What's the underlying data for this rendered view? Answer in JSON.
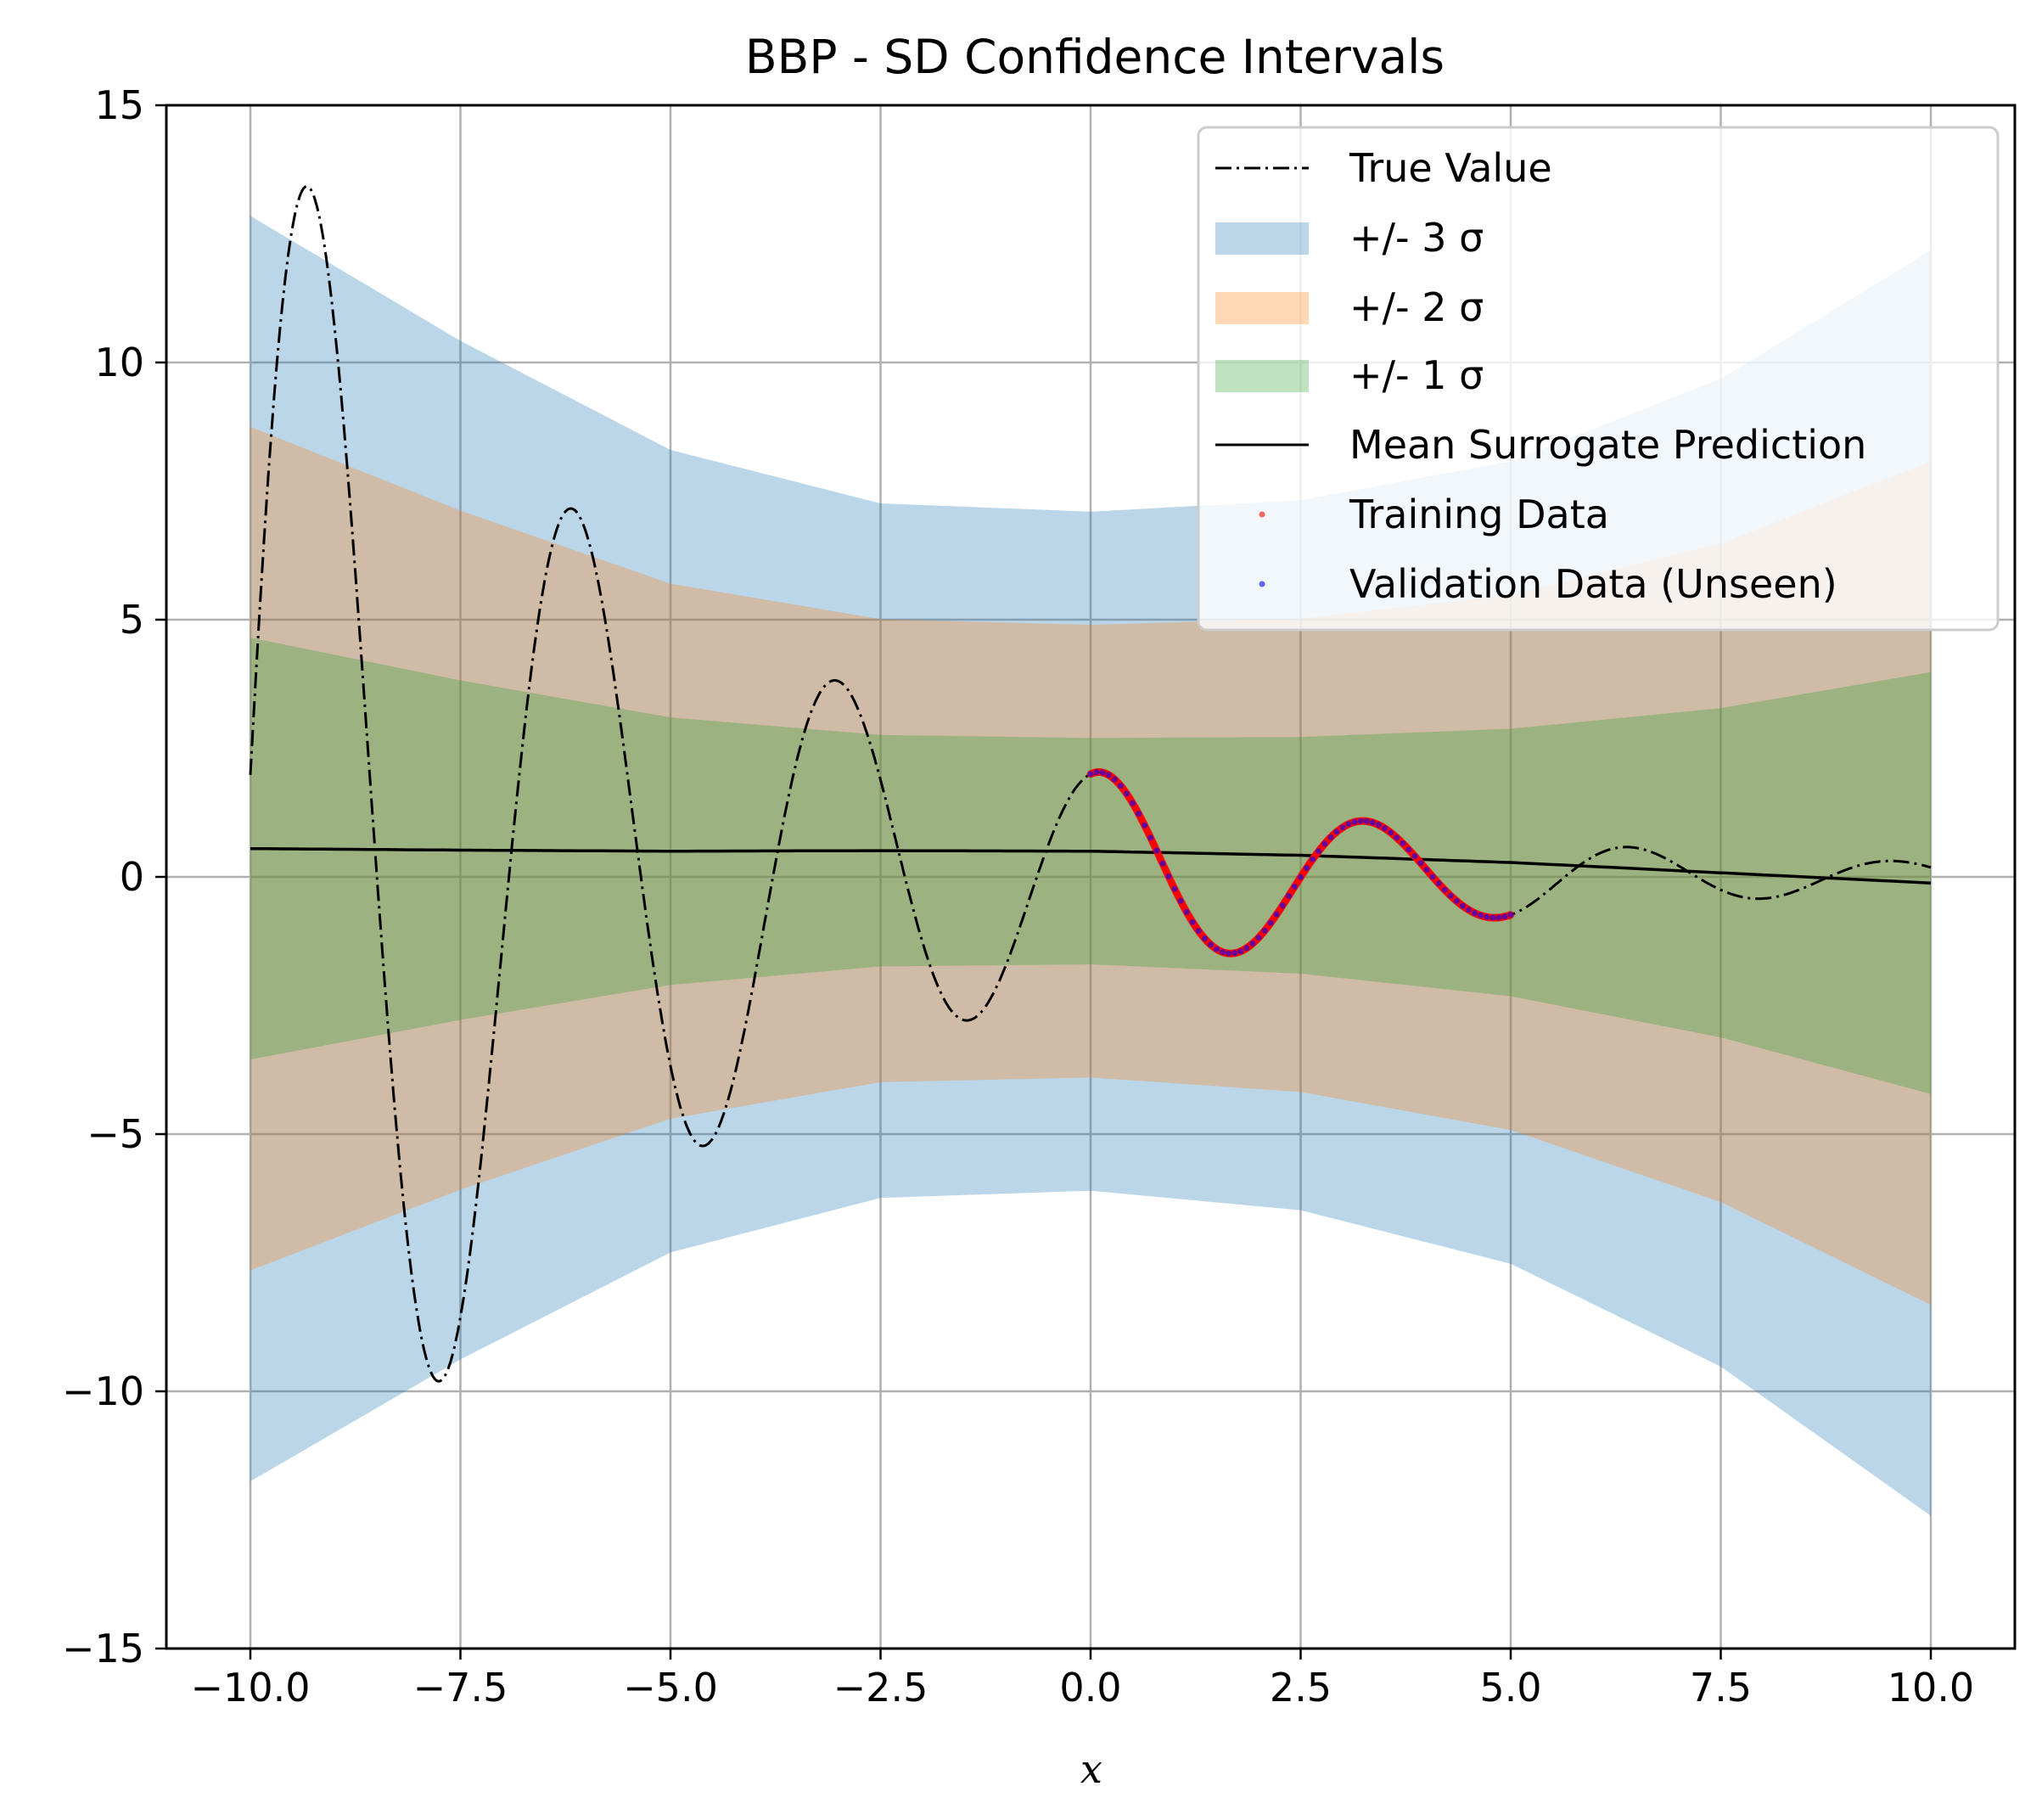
{
  "chart_data": {
    "type": "line",
    "title": "BBP - SD Confidence Intervals",
    "xlabel": "x",
    "ylabel": "",
    "xlim": [
      -11,
      11
    ],
    "ylim": [
      -15,
      15
    ],
    "xticks": [
      -10,
      -7.5,
      -5,
      -2.5,
      0,
      2.5,
      5,
      7.5,
      10
    ],
    "xtick_labels": [
      "−10.0",
      "−7.5",
      "−5.0",
      "−2.5",
      "0.0",
      "2.5",
      "5.0",
      "7.5",
      "10.0"
    ],
    "yticks": [
      -15,
      -10,
      -5,
      0,
      5,
      10,
      15
    ],
    "ytick_labels": [
      "−15",
      "−10",
      "−5",
      "0",
      "5",
      "10",
      "15"
    ],
    "grid": true,
    "legend_position": "upper-right",
    "colors": {
      "band3": "#1f77b4",
      "band2": "#ff7f0e",
      "band1": "#2ca02c",
      "mean": "#000000",
      "true": "#000000",
      "training": "#ff0000",
      "validation": "#0000ff"
    },
    "series": [
      {
        "name": "True Value",
        "style": "dashdot",
        "x_range": [
          -10,
          10
        ]
      },
      {
        "name": "+/- 3 σ",
        "kind": "band",
        "sigma": 3,
        "x": [
          -10,
          -7.5,
          -5,
          -2.5,
          0,
          2.5,
          5,
          7.5,
          10
        ],
        "sd": [
          4.1,
          3.3,
          2.6,
          2.25,
          2.2,
          2.3,
          2.6,
          3.2,
          4.1
        ]
      },
      {
        "name": "+/- 2 σ",
        "kind": "band",
        "sigma": 2
      },
      {
        "name": "+/- 1 σ",
        "kind": "band",
        "sigma": 1
      },
      {
        "name": "Mean Surrogate Prediction",
        "style": "solid",
        "x": [
          -10,
          -7.5,
          -5,
          -2.5,
          0,
          2.5,
          5,
          7.5,
          10
        ],
        "y": [
          0.55,
          0.52,
          0.5,
          0.51,
          0.5,
          0.42,
          0.28,
          0.08,
          -0.12
        ]
      },
      {
        "name": "Training Data",
        "style": "points",
        "x_range": [
          0,
          5
        ]
      },
      {
        "name": "Validation Data (Unseen)",
        "style": "points",
        "x_range": [
          0,
          5
        ]
      }
    ]
  }
}
